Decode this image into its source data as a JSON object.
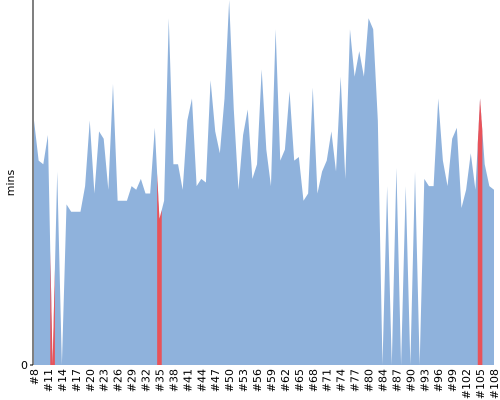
{
  "chart_data": {
    "type": "area",
    "y_label": "mins",
    "categories": [
      "#8",
      null,
      null,
      "#11",
      null,
      null,
      "#14",
      null,
      null,
      "#17",
      null,
      null,
      "#20",
      null,
      null,
      "#23",
      null,
      null,
      "#26",
      null,
      null,
      "#29",
      null,
      null,
      "#32",
      null,
      null,
      "#35",
      null,
      null,
      "#38",
      null,
      null,
      "#41",
      null,
      null,
      "#44",
      null,
      null,
      "#47",
      null,
      null,
      "#50",
      null,
      null,
      "#53",
      null,
      null,
      "#56",
      null,
      null,
      "#59",
      null,
      null,
      "#62",
      null,
      null,
      "#65",
      null,
      null,
      "#68",
      null,
      null,
      "#71",
      null,
      null,
      "#74",
      null,
      null,
      "#77",
      null,
      null,
      "#80",
      null,
      null,
      "#84",
      null,
      null,
      "#87",
      null,
      null,
      "#90",
      null,
      null,
      "#93",
      null,
      null,
      "#96",
      null,
      null,
      "#99",
      null,
      null,
      "#102",
      null,
      null,
      "#105",
      null,
      null,
      "#108"
    ],
    "values": [
      67,
      56,
      55,
      63,
      0,
      53,
      0,
      44,
      42,
      42,
      42,
      49,
      67,
      47,
      64,
      62,
      48,
      77,
      45,
      45,
      45,
      49,
      48,
      51,
      47,
      47,
      65,
      40,
      45,
      95,
      55,
      55,
      48,
      67,
      73,
      49,
      51,
      50,
      78,
      64,
      58,
      73,
      100,
      70,
      48,
      63,
      70,
      51,
      55,
      81,
      59,
      49,
      92,
      56,
      59,
      75,
      56,
      57,
      45,
      47,
      76,
      47,
      53,
      56,
      64,
      53,
      79,
      51,
      92,
      79,
      86,
      79,
      95,
      92,
      67,
      0,
      49,
      0,
      54,
      0,
      49,
      0,
      53,
      0,
      51,
      49,
      49,
      73,
      56,
      49,
      62,
      65,
      43,
      48,
      58,
      48,
      73,
      55,
      49,
      48
    ],
    "color": "#8fb2dc",
    "highlight_color": "#e8535a",
    "highlighted": [
      4,
      27,
      96
    ],
    "ylim": [
      0,
      100
    ],
    "yticks": [
      0
    ]
  }
}
